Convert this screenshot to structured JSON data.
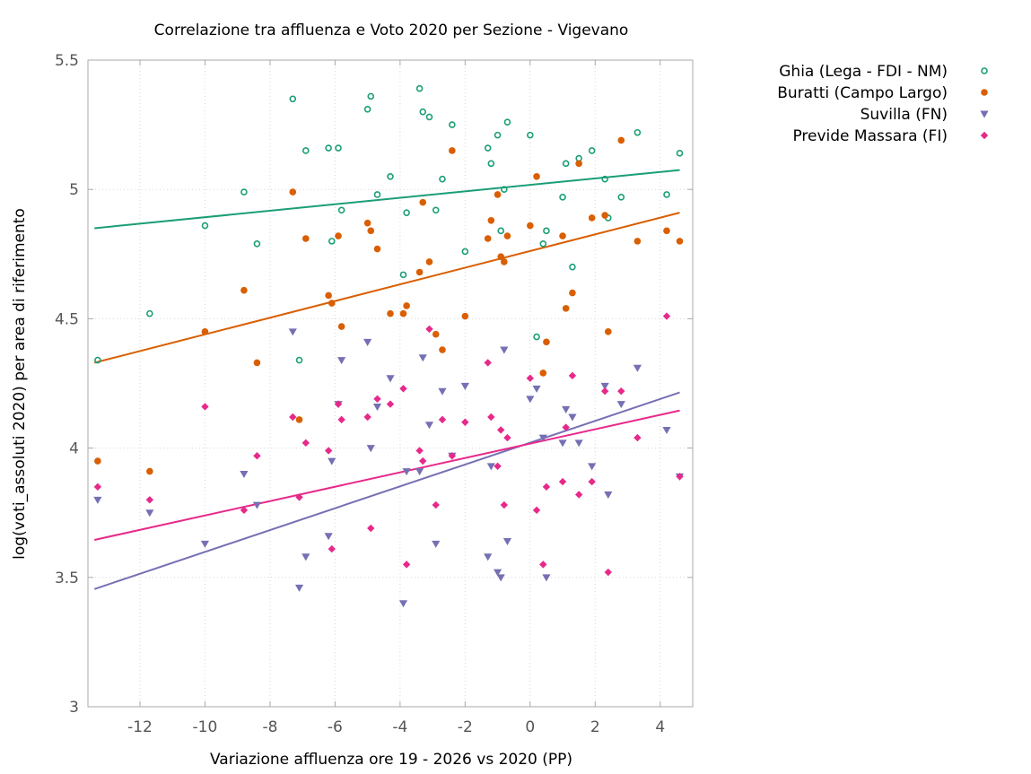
{
  "chart_data": {
    "type": "scatter",
    "title": "Correlazione tra affluenza e Voto 2020 per Sezione - Vigevano",
    "xlabel": "Variazione affluenza ore 19 - 2026 vs 2020 (PP)",
    "ylabel": "log(voti_assoluti 2020) per area di riferimento",
    "xlim": [
      -13.6,
      5.0
    ],
    "ylim": [
      3.0,
      5.5
    ],
    "xticks": [
      -12,
      -10,
      -8,
      -6,
      -4,
      -2,
      0,
      2,
      4
    ],
    "xtick_labels": [
      "-12",
      "-10",
      "-8",
      "-6",
      "-4",
      "-2",
      "0",
      "2",
      "4"
    ],
    "yticks": [
      3.0,
      3.5,
      4.0,
      4.5,
      5.0,
      5.5
    ],
    "ytick_labels": [
      "3",
      "3.5",
      "4",
      "4.5",
      "5",
      "5.5"
    ],
    "grid": true,
    "legend_position": "outside-top-right",
    "x": [
      -13.3,
      -11.7,
      -10.0,
      -8.8,
      -8.4,
      -7.3,
      -7.1,
      -6.9,
      -6.2,
      -6.1,
      -5.9,
      -5.8,
      -5.0,
      -4.9,
      -4.7,
      -4.3,
      -3.9,
      -3.8,
      -3.4,
      -3.3,
      -3.1,
      -2.9,
      -2.7,
      -2.4,
      -2.0,
      -1.3,
      -1.2,
      -1.0,
      -0.9,
      -0.8,
      -0.7,
      0.0,
      0.2,
      0.4,
      0.5,
      1.0,
      1.1,
      1.3,
      1.5,
      1.9,
      2.3,
      2.4,
      2.8,
      3.3,
      4.2,
      4.6
    ],
    "series": [
      {
        "name": "Ghia (Lega - FDI - NM)",
        "color": "#1b9e77",
        "marker": "open-circle",
        "values": [
          4.34,
          4.52,
          4.86,
          4.99,
          4.79,
          5.35,
          4.34,
          5.15,
          5.16,
          4.8,
          5.16,
          4.92,
          5.31,
          5.36,
          4.98,
          5.05,
          4.67,
          4.91,
          5.39,
          5.3,
          5.28,
          4.92,
          5.04,
          5.25,
          4.76,
          5.16,
          5.1,
          5.21,
          4.84,
          5.0,
          5.26,
          5.21,
          4.43,
          4.79,
          4.84,
          4.97,
          5.1,
          4.7,
          5.12,
          5.15,
          5.04,
          4.89,
          4.97,
          5.22,
          4.98,
          5.14
        ],
        "trend": [
          [
            -13.4,
            4.85
          ],
          [
            4.6,
            5.075
          ]
        ]
      },
      {
        "name": "Buratti (Campo Largo)",
        "color": "#d95f02",
        "marker": "filled-circle",
        "values": [
          3.95,
          3.91,
          4.45,
          4.61,
          4.33,
          4.99,
          4.11,
          4.81,
          4.59,
          4.56,
          4.82,
          4.47,
          4.87,
          4.84,
          4.77,
          4.52,
          4.52,
          4.55,
          4.68,
          4.95,
          4.72,
          4.44,
          4.38,
          5.15,
          4.51,
          4.81,
          4.88,
          4.98,
          4.74,
          4.72,
          4.82,
          4.86,
          5.05,
          4.29,
          4.41,
          4.82,
          4.54,
          4.6,
          5.1,
          4.89,
          4.9,
          4.45,
          5.19,
          4.8,
          4.84,
          4.8
        ],
        "trend": [
          [
            -13.4,
            4.33
          ],
          [
            4.6,
            4.91
          ]
        ]
      },
      {
        "name": "Suvilla (FN)",
        "color": "#7570b3",
        "marker": "triangle-down",
        "values": [
          3.8,
          3.75,
          3.63,
          3.9,
          3.78,
          4.45,
          3.46,
          3.58,
          3.66,
          3.95,
          4.17,
          4.34,
          4.41,
          4.0,
          4.16,
          4.27,
          3.4,
          3.91,
          3.91,
          4.35,
          4.09,
          3.63,
          4.22,
          3.97,
          4.24,
          3.58,
          3.93,
          3.52,
          3.5,
          4.38,
          3.64,
          4.19,
          4.23,
          4.04,
          3.5,
          4.02,
          4.15,
          4.12,
          4.02,
          3.93,
          4.24,
          3.82,
          4.17,
          4.31,
          4.07,
          3.89
        ],
        "trend": [
          [
            -13.4,
            3.455
          ],
          [
            4.6,
            4.215
          ]
        ]
      },
      {
        "name": "Previde Massara (FI)",
        "color": "#e7298a",
        "marker": "diamond",
        "values": [
          3.85,
          3.8,
          4.16,
          3.76,
          3.97,
          4.12,
          3.81,
          4.02,
          3.99,
          3.61,
          4.17,
          4.11,
          4.12,
          3.69,
          4.19,
          4.17,
          4.23,
          3.55,
          3.99,
          3.95,
          4.46,
          3.78,
          4.11,
          3.97,
          4.1,
          4.33,
          4.12,
          3.93,
          4.07,
          3.78,
          4.04,
          4.27,
          3.76,
          3.55,
          3.85,
          3.87,
          4.08,
          4.28,
          3.82,
          3.87,
          4.22,
          3.52,
          4.22,
          4.04,
          4.51,
          3.89
        ],
        "trend": [
          [
            -13.4,
            3.645
          ],
          [
            4.6,
            4.145
          ]
        ]
      }
    ]
  }
}
